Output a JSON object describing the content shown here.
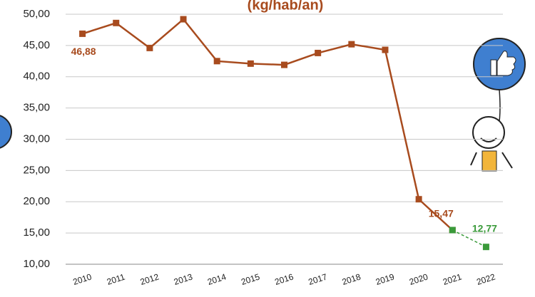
{
  "chart_data": {
    "type": "line",
    "title": "(kg/hab/an)",
    "categories": [
      "2010",
      "2011",
      "2012",
      "2013",
      "2014",
      "2015",
      "2016",
      "2017",
      "2018",
      "2019",
      "2020",
      "2021",
      "2022"
    ],
    "series": [
      {
        "color": "#a84b1e",
        "dashed": false,
        "values": [
          46.88,
          48.6,
          44.6,
          49.2,
          42.5,
          42.1,
          41.9,
          43.8,
          45.2,
          44.3,
          20.4,
          15.47,
          null
        ],
        "value_labels": [
          "46,88",
          null,
          null,
          null,
          null,
          null,
          null,
          null,
          null,
          null,
          null,
          "15,47",
          null
        ]
      },
      {
        "color": "#3a9a3a",
        "dashed": true,
        "values": [
          null,
          null,
          null,
          null,
          null,
          null,
          null,
          null,
          null,
          null,
          null,
          15.47,
          12.77
        ],
        "value_labels": [
          null,
          null,
          null,
          null,
          null,
          null,
          null,
          null,
          null,
          null,
          null,
          null,
          "12,77"
        ]
      }
    ],
    "ylim": [
      10,
      50
    ],
    "yticks": [
      {
        "value": 10,
        "label": "10,00"
      },
      {
        "value": 15,
        "label": "15,00"
      },
      {
        "value": 20,
        "label": "20,00"
      },
      {
        "value": 25,
        "label": "25,00"
      },
      {
        "value": 30,
        "label": "30,00"
      },
      {
        "value": 35,
        "label": "35,00"
      },
      {
        "value": 40,
        "label": "40,00"
      },
      {
        "value": 45,
        "label": "45,00"
      },
      {
        "value": 50,
        "label": "50,00"
      }
    ],
    "grid": true
  }
}
